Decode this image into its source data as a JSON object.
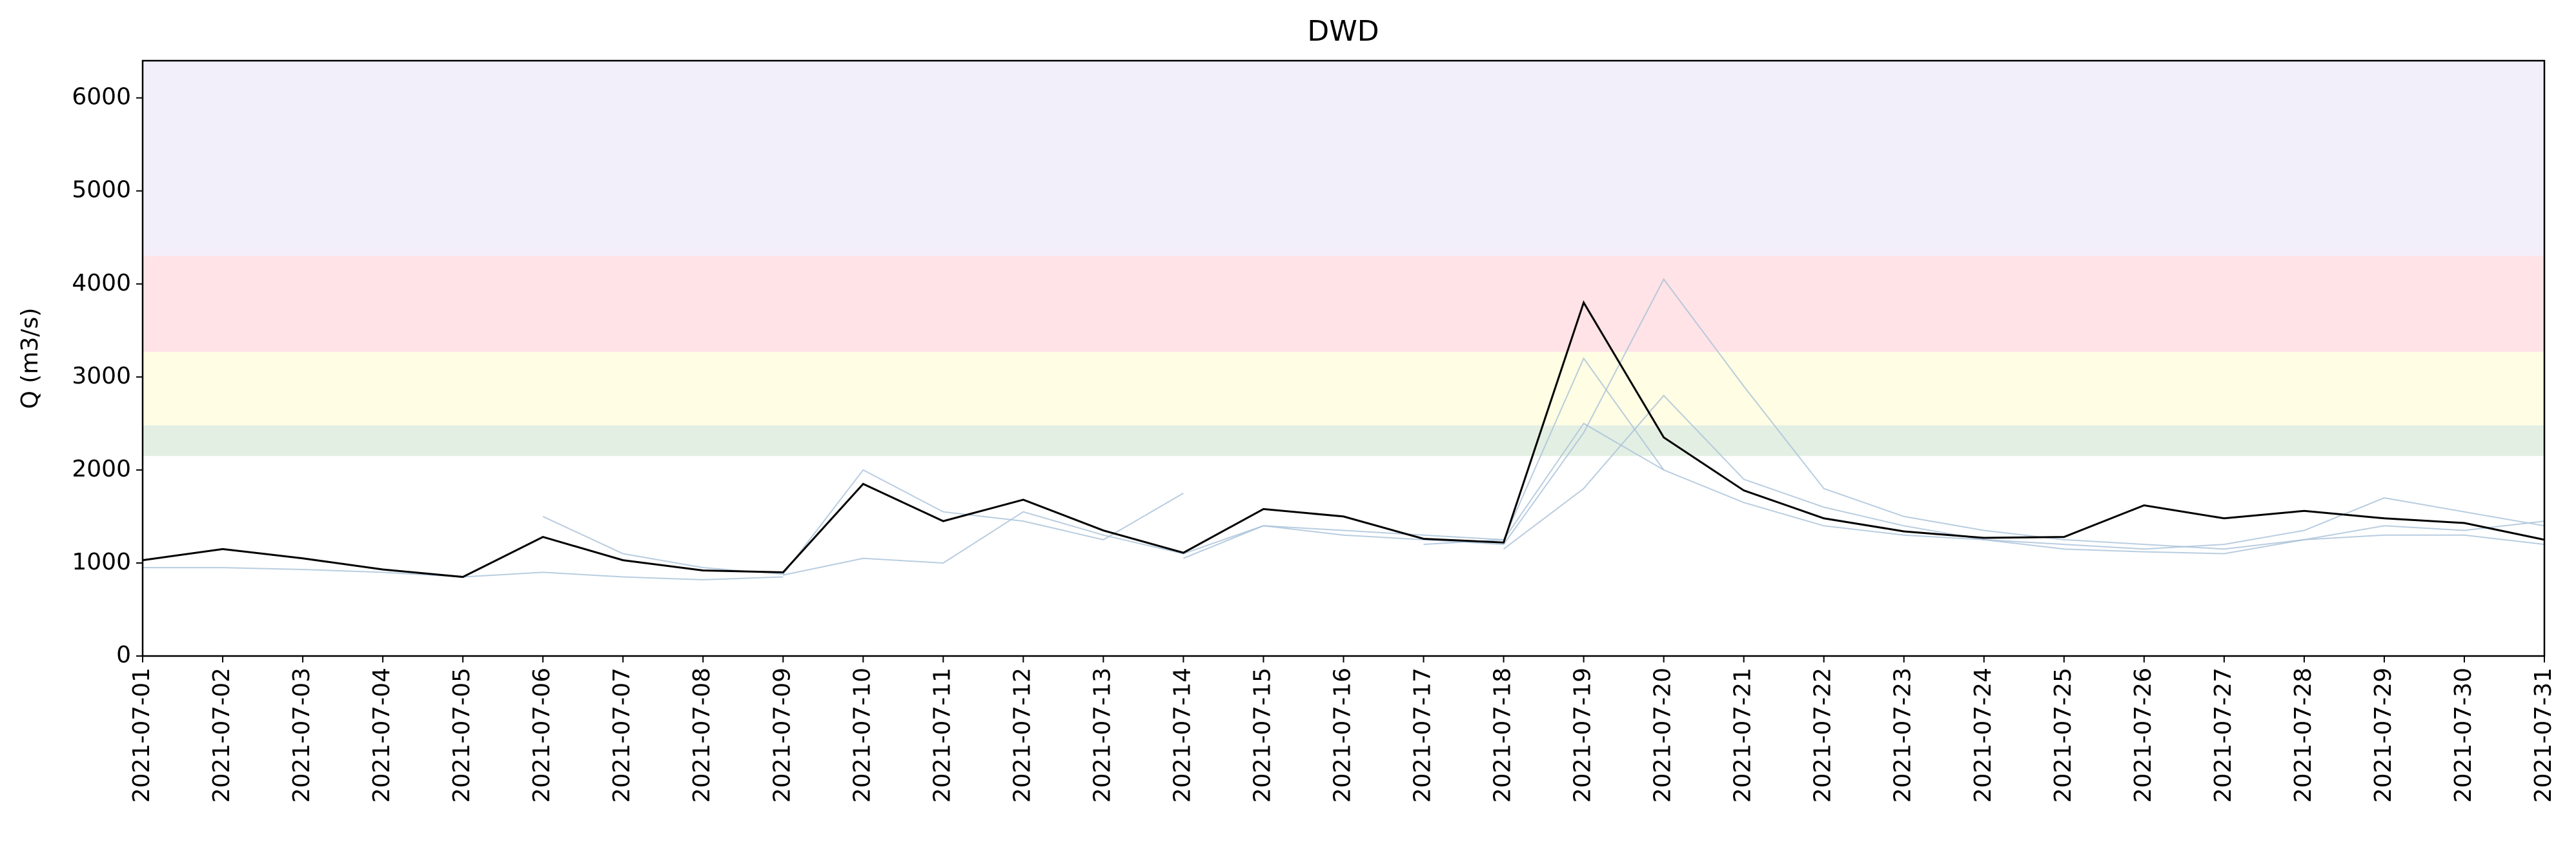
{
  "chart_data": {
    "type": "line",
    "title": "DWD",
    "y_label": "Q (m3/s)",
    "x": [
      "2021-07-01",
      "2021-07-02",
      "2021-07-03",
      "2021-07-04",
      "2021-07-05",
      "2021-07-06",
      "2021-07-07",
      "2021-07-08",
      "2021-07-09",
      "2021-07-10",
      "2021-07-11",
      "2021-07-12",
      "2021-07-13",
      "2021-07-14",
      "2021-07-15",
      "2021-07-16",
      "2021-07-17",
      "2021-07-18",
      "2021-07-19",
      "2021-07-20",
      "2021-07-21",
      "2021-07-22",
      "2021-07-23",
      "2021-07-24",
      "2021-07-25",
      "2021-07-26",
      "2021-07-27",
      "2021-07-28",
      "2021-07-29",
      "2021-07-30",
      "2021-07-31"
    ],
    "ylim": [
      0,
      6400
    ],
    "yticks": [
      0,
      1000,
      2000,
      3000,
      4000,
      5000,
      6000
    ],
    "bands": [
      {
        "from": 2150,
        "to": 2480,
        "color": "#e3efe3"
      },
      {
        "from": 2480,
        "to": 3270,
        "color": "#fffde3"
      },
      {
        "from": 3270,
        "to": 4300,
        "color": "#ffe3e6"
      },
      {
        "from": 4300,
        "to": 6400,
        "color": "#f2eefa"
      }
    ],
    "series": [
      {
        "color": "#a7c0d8",
        "values": [
          null,
          null,
          null,
          null,
          null,
          1500,
          1100,
          950,
          880,
          2000,
          1550,
          1450,
          1250,
          1750,
          null,
          null,
          null,
          null,
          null,
          null,
          null,
          null,
          null,
          null,
          null,
          null,
          null,
          null,
          null,
          null,
          null
        ]
      },
      {
        "color": "#a7c0d8",
        "values": [
          null,
          null,
          null,
          null,
          null,
          null,
          null,
          null,
          870,
          1050,
          1000,
          1550,
          1300,
          1100,
          1400,
          1350,
          1300,
          1250,
          3200,
          2000,
          null,
          null,
          null,
          null,
          null,
          null,
          null,
          null,
          null,
          null,
          null
        ]
      },
      {
        "color": "#a7c0d8",
        "values": [
          null,
          null,
          null,
          null,
          null,
          null,
          null,
          null,
          null,
          null,
          null,
          null,
          null,
          1050,
          1400,
          1300,
          1250,
          1200,
          2400,
          4050,
          2900,
          1800,
          1500,
          1350,
          1250,
          1200,
          1150,
          1250,
          1400,
          1350,
          1450
        ]
      },
      {
        "color": "#a7c0d8",
        "values": [
          null,
          null,
          null,
          null,
          null,
          null,
          null,
          null,
          null,
          null,
          null,
          null,
          null,
          null,
          null,
          null,
          1200,
          1250,
          2500,
          2000,
          1650,
          1400,
          1300,
          1250,
          1200,
          1150,
          1200,
          1350,
          1700,
          1550,
          1400
        ]
      },
      {
        "color": "#a7c0d8",
        "values": [
          950,
          950,
          930,
          900,
          850,
          900,
          850,
          820,
          850,
          null,
          null,
          null,
          null,
          null,
          null,
          null,
          null,
          null,
          null,
          null,
          null,
          null,
          null,
          null,
          null,
          null,
          null,
          null,
          null,
          null,
          null
        ]
      },
      {
        "color": "#a7c0d8",
        "values": [
          null,
          null,
          null,
          null,
          null,
          null,
          null,
          null,
          null,
          null,
          null,
          null,
          null,
          null,
          null,
          null,
          null,
          1150,
          1800,
          2800,
          1900,
          1600,
          1400,
          1250,
          1150,
          1120,
          1100,
          1250,
          1300,
          1300,
          1200
        ]
      },
      {
        "color": "#000000",
        "values": [
          1030,
          1150,
          1050,
          930,
          850,
          1280,
          1030,
          920,
          900,
          1850,
          1450,
          1680,
          1350,
          1110,
          1580,
          1500,
          1260,
          1220,
          3800,
          2350,
          1780,
          1480,
          1340,
          1270,
          1280,
          1620,
          1480,
          1560,
          1480,
          1430,
          1250
        ]
      }
    ]
  }
}
